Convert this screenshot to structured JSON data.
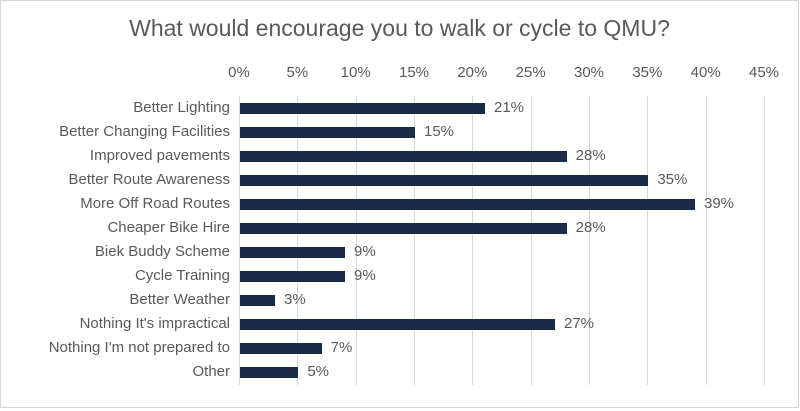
{
  "chart_data": {
    "type": "bar",
    "orientation": "horizontal",
    "title": "What would encourage you to walk or cycle to QMU?",
    "categories": [
      "Better Lighting",
      "Better Changing Facilities",
      "Improved pavements",
      "Better Route Awareness",
      "More Off Road Routes",
      "Cheaper Bike Hire",
      "Biek Buddy Scheme",
      "Cycle Training",
      "Better Weather",
      "Nothing It's impractical",
      "Nothing I'm not prepared to",
      "Other"
    ],
    "values": [
      21,
      15,
      28,
      35,
      39,
      28,
      9,
      9,
      3,
      27,
      7,
      5
    ],
    "value_labels": [
      "21%",
      "15%",
      "28%",
      "35%",
      "39%",
      "28%",
      "9%",
      "9%",
      "3%",
      "27%",
      "7%",
      "5%"
    ],
    "x_axis": {
      "position": "top",
      "min": 0,
      "max": 45,
      "tick_step": 5,
      "ticks": [
        "0%",
        "5%",
        "10%",
        "15%",
        "20%",
        "25%",
        "30%",
        "35%",
        "40%",
        "45%"
      ]
    },
    "grid": true,
    "legend": "none",
    "colors": {
      "bar": "#1c2b45",
      "text": "#595959",
      "gridline": "#d9d9d9",
      "background": "#ffffff",
      "border": "#d6d6d6"
    }
  }
}
